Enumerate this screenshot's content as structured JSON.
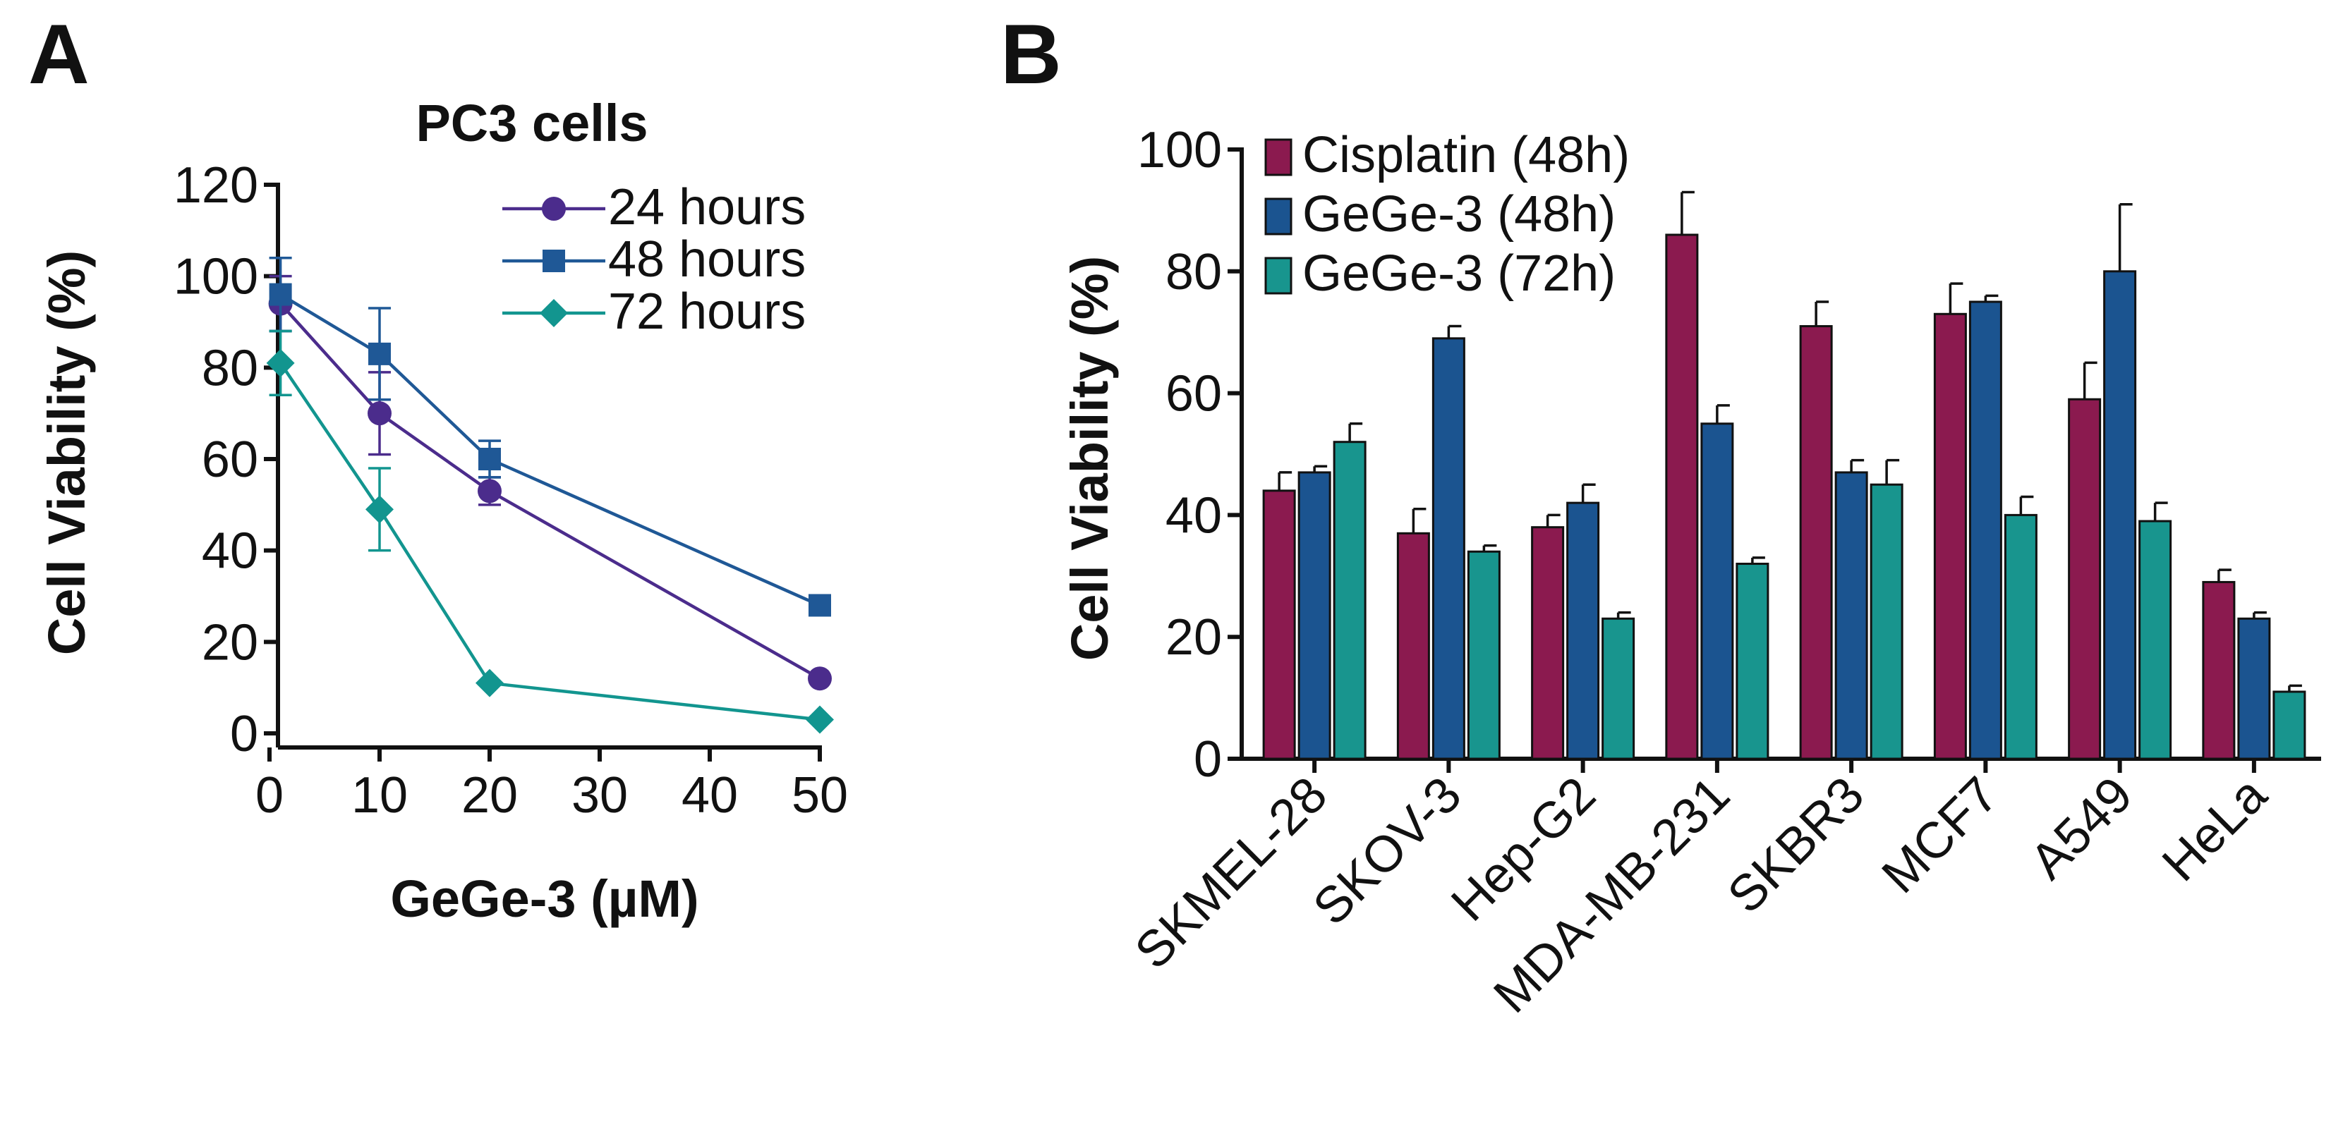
{
  "figure": {
    "panel_letters": [
      "A",
      "B"
    ],
    "colors": {
      "24h": "#4B2C8C",
      "48h": "#1F5896",
      "72h": "#12958F",
      "cisplatin": "#8B1A4F",
      "bar_48": "#1B5490",
      "bar_72": "#18958E"
    }
  },
  "chart_data": [
    {
      "type": "line",
      "title": "PC3 cells",
      "xlabel": "GeGe-3 (µM)",
      "ylabel": "Cell Viability (%)",
      "xlim": [
        0,
        50
      ],
      "ylim": [
        0,
        120
      ],
      "xticks": [
        0,
        10,
        20,
        30,
        40,
        50
      ],
      "yticks": [
        0,
        20,
        40,
        60,
        80,
        100,
        120
      ],
      "x": [
        1,
        10,
        20,
        50
      ],
      "legend_position": "top-right",
      "series": [
        {
          "name": "24 hours",
          "marker": "circle",
          "color": "#4B2C8C",
          "values": [
            94,
            70,
            53,
            12
          ],
          "errors": [
            6,
            9,
            3,
            0
          ]
        },
        {
          "name": "48 hours",
          "marker": "square",
          "color": "#1F5896",
          "values": [
            96,
            83,
            60,
            28
          ],
          "errors": [
            8,
            10,
            4,
            0
          ]
        },
        {
          "name": "72 hours",
          "marker": "diamond",
          "color": "#12958F",
          "values": [
            81,
            49,
            11,
            3
          ],
          "errors": [
            7,
            9,
            0,
            0
          ]
        }
      ]
    },
    {
      "type": "bar",
      "title": "",
      "xlabel": "",
      "ylabel": "Cell Viability (%)",
      "ylim": [
        0,
        100
      ],
      "yticks": [
        0,
        20,
        40,
        60,
        80,
        100
      ],
      "categories": [
        "SKMEL-28",
        "SKOV-3",
        "Hep-G2",
        "MDA-MB-231",
        "SKBR3",
        "MCF7",
        "A549",
        "HeLa"
      ],
      "legend_position": "top-left",
      "series": [
        {
          "name": "Cisplatin (48h)",
          "color": "#8B1A4F",
          "values": [
            44,
            37,
            38,
            86,
            71,
            73,
            59,
            29
          ],
          "errors": [
            3,
            4,
            2,
            7,
            4,
            5,
            6,
            2
          ]
        },
        {
          "name": "GeGe-3 (48h)",
          "color": "#1B5490",
          "values": [
            47,
            69,
            42,
            55,
            47,
            75,
            80,
            23
          ],
          "errors": [
            1,
            2,
            3,
            3,
            2,
            1,
            11,
            1
          ]
        },
        {
          "name": "GeGe-3 (72h)",
          "color": "#18958E",
          "values": [
            52,
            34,
            23,
            32,
            45,
            40,
            39,
            11
          ],
          "errors": [
            3,
            1,
            1,
            1,
            4,
            3,
            3,
            1
          ]
        }
      ]
    }
  ]
}
